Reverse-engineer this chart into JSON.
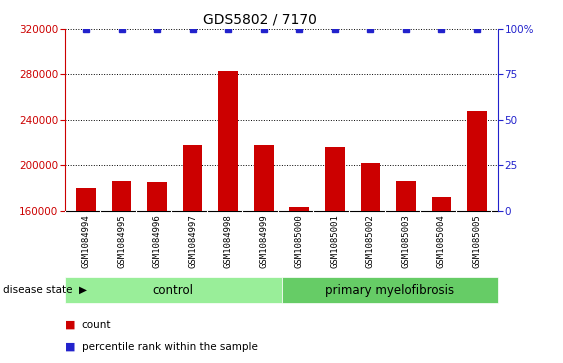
{
  "title": "GDS5802 / 7170",
  "categories": [
    "GSM1084994",
    "GSM1084995",
    "GSM1084996",
    "GSM1084997",
    "GSM1084998",
    "GSM1084999",
    "GSM1085000",
    "GSM1085001",
    "GSM1085002",
    "GSM1085003",
    "GSM1085004",
    "GSM1085005"
  ],
  "counts": [
    180000,
    186000,
    185000,
    218000,
    283000,
    218000,
    163000,
    216000,
    202000,
    186000,
    172000,
    248000
  ],
  "group_labels": [
    "control",
    "primary myelofibrosis"
  ],
  "group_spans": [
    6,
    6
  ],
  "bar_color": "#cc0000",
  "percentile_color": "#2222cc",
  "ylim_left": [
    160000,
    320000
  ],
  "ylim_right": [
    0,
    100
  ],
  "yticks_left": [
    160000,
    200000,
    240000,
    280000,
    320000
  ],
  "yticks_right": [
    0,
    25,
    50,
    75,
    100
  ],
  "grid_color": "#000000",
  "bg_color": "#cccccc",
  "control_color": "#99ee99",
  "pmf_color": "#66cc66",
  "legend_items": [
    "count",
    "percentile rank within the sample"
  ],
  "disease_state_label": "disease state"
}
